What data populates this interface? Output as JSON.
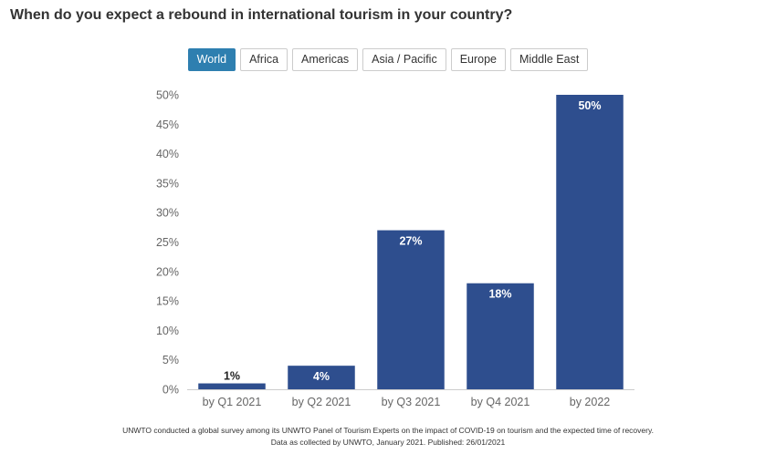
{
  "title": "When do you expect a rebound in international tourism in your country?",
  "tabs": [
    {
      "label": "World",
      "active": true
    },
    {
      "label": "Africa",
      "active": false
    },
    {
      "label": "Americas",
      "active": false
    },
    {
      "label": "Asia / Pacific",
      "active": false
    },
    {
      "label": "Europe",
      "active": false
    },
    {
      "label": "Middle East",
      "active": false
    }
  ],
  "chart_data": {
    "type": "bar",
    "categories": [
      "by Q1 2021",
      "by Q2 2021",
      "by Q3 2021",
      "by Q4 2021",
      "by 2022"
    ],
    "values": [
      1,
      4,
      27,
      18,
      50
    ],
    "data_labels": [
      "1%",
      "4%",
      "27%",
      "18%",
      "50%"
    ],
    "ylim": [
      0,
      50
    ],
    "yticks": [
      "0%",
      "5%",
      "10%",
      "15%",
      "20%",
      "25%",
      "30%",
      "35%",
      "40%",
      "45%",
      "50%"
    ],
    "bar_color": "#2e4e8e",
    "grid": false
  },
  "footer": {
    "line1": "UNWTO conducted a global survey among its UNWTO Panel of Tourism Experts on the impact of COVID-19 on tourism and the expected time of recovery.",
    "line2": "Data as collected by UNWTO, January 2021. Published: 26/01/2021"
  },
  "colors": {
    "accent": "#2e7fb0",
    "bar": "#2e4e8e"
  }
}
